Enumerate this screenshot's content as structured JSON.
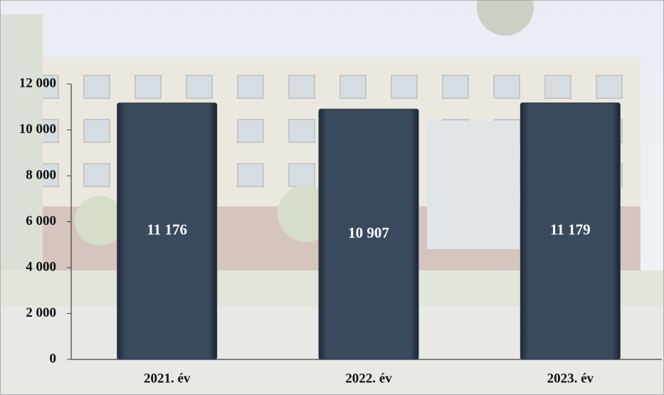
{
  "chart_data": {
    "type": "bar",
    "categories": [
      "2021. év",
      "2022. év",
      "2023. év"
    ],
    "values": [
      11176,
      10907,
      11179
    ],
    "value_labels": [
      "11 176",
      "10 907",
      "11 179"
    ],
    "color": "#2e3d4f",
    "ylim": [
      0,
      12000
    ],
    "yticks": [
      0,
      {
        "value": 2000,
        "label": "2 000"
      },
      {
        "value": 4000,
        "label": "4 000"
      },
      {
        "value": 6000,
        "label": "6 000"
      },
      {
        "value": 8000,
        "label": "8 000"
      },
      {
        "value": 10000,
        "label": "10 000"
      },
      {
        "value": 12000,
        "label": "12 000"
      }
    ]
  }
}
